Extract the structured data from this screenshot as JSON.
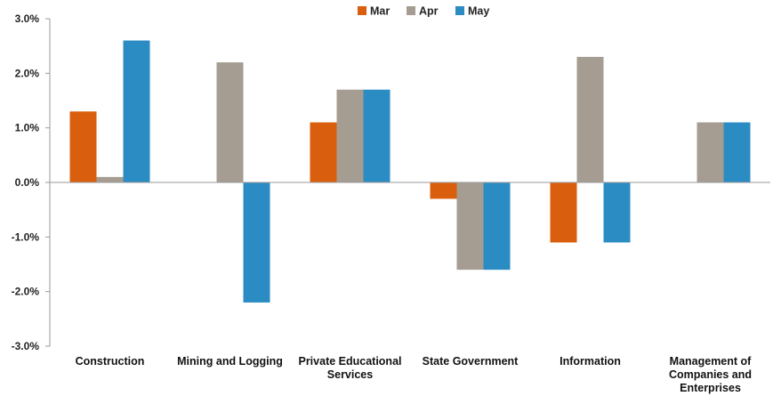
{
  "chart_data": {
    "type": "bar",
    "title": "",
    "xlabel": "",
    "ylabel": "",
    "ylim": [
      -3.0,
      3.0
    ],
    "yticks": [
      "3.0%",
      "2.0%",
      "1.0%",
      "0.0%",
      "-1.0%",
      "-2.0%",
      "-3.0%"
    ],
    "ytick_values": [
      3,
      2,
      1,
      0,
      -1,
      -2,
      -3
    ],
    "grid": false,
    "legend_position": "top-center",
    "categories": [
      [
        "Construction"
      ],
      [
        "Mining and Logging"
      ],
      [
        "Private Educational",
        "Services"
      ],
      [
        "State Government"
      ],
      [
        "Information"
      ],
      [
        "Management of",
        "Companies and",
        "Enterprises"
      ]
    ],
    "series": [
      {
        "name": "Mar",
        "color": "#d95f0e",
        "values": [
          1.3,
          0.0,
          1.1,
          -0.3,
          -1.1,
          0.0
        ]
      },
      {
        "name": "Apr",
        "color": "#a59d91",
        "values": [
          0.1,
          2.2,
          1.7,
          -1.6,
          2.3,
          1.1
        ]
      },
      {
        "name": "May",
        "color": "#2b8cc4",
        "values": [
          2.6,
          -2.2,
          1.7,
          -1.6,
          -1.1,
          1.1
        ]
      }
    ]
  }
}
